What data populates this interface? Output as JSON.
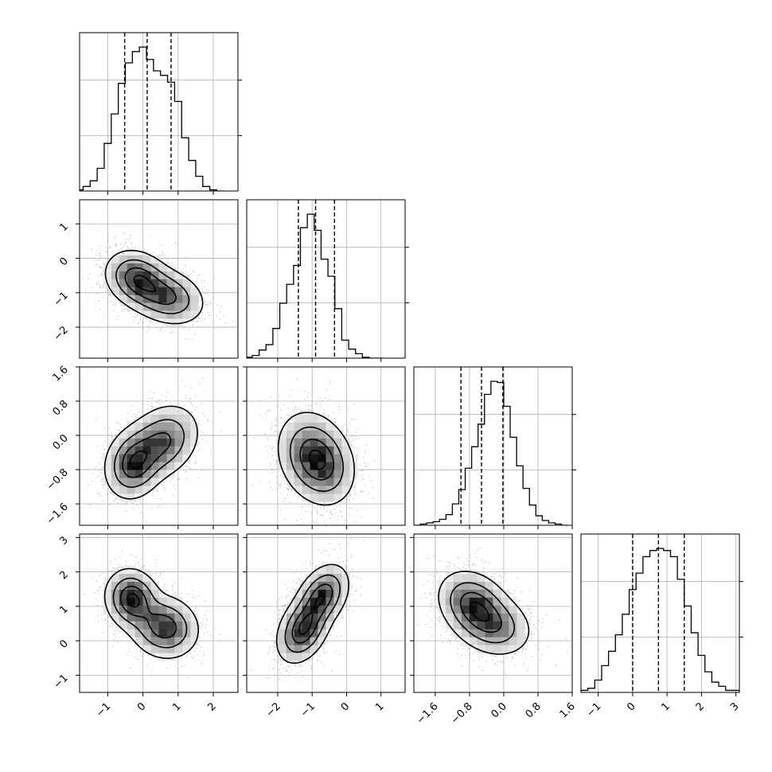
{
  "chart_data": {
    "type": "corner",
    "grid": true,
    "dimensions": [
      {
        "index": 0,
        "range": [
          -1.8,
          2.7
        ],
        "ticks": [
          -1,
          0,
          1,
          2
        ],
        "tick_labels": [
          "−1",
          "0",
          "1",
          "2"
        ],
        "quantiles": [
          -0.52,
          0.12,
          0.8
        ]
      },
      {
        "index": 1,
        "range": [
          -2.9,
          1.7
        ],
        "ticks": [
          -2,
          -1,
          0,
          1
        ],
        "tick_labels": [
          "−2",
          "−1",
          "0",
          "1"
        ],
        "quantiles": [
          -1.4,
          -0.9,
          -0.35
        ]
      },
      {
        "index": 2,
        "range": [
          -2.1,
          1.6
        ],
        "ticks": [
          -1.6,
          -0.8,
          0.0,
          0.8,
          1.6
        ],
        "tick_labels": [
          "−1.6",
          "−0.8",
          "0.0",
          "0.8",
          "1.6"
        ],
        "quantiles": [
          -1.0,
          -0.52,
          -0.02
        ]
      },
      {
        "index": 3,
        "range": [
          -1.5,
          3.1
        ],
        "ticks": [
          -1,
          0,
          1,
          2,
          3
        ],
        "tick_labels": [
          "−1",
          "0",
          "1",
          "2",
          "3"
        ],
        "quantiles": [
          0.0,
          0.75,
          1.5
        ]
      }
    ],
    "histograms": [
      {
        "dim": 0,
        "bin_edges": [
          -1.9,
          -1.7,
          -1.5,
          -1.3,
          -1.1,
          -0.9,
          -0.7,
          -0.5,
          -0.3,
          -0.1,
          0.1,
          0.3,
          0.5,
          0.7,
          0.9,
          1.1,
          1.3,
          1.5,
          1.7,
          1.9,
          2.1,
          2.3
        ],
        "counts": [
          1,
          4,
          9,
          20,
          42,
          68,
          95,
          113,
          123,
          127,
          116,
          106,
          102,
          96,
          79,
          47,
          27,
          13,
          4,
          1,
          0
        ]
      },
      {
        "dim": 1,
        "bin_edges": [
          -2.94,
          -2.74,
          -2.54,
          -2.34,
          -2.14,
          -1.94,
          -1.74,
          -1.54,
          -1.34,
          -1.14,
          -0.94,
          -0.74,
          -0.54,
          -0.34,
          -0.14,
          0.06,
          0.26,
          0.46,
          0.66,
          0.86,
          1.06
        ],
        "counts": [
          1,
          3,
          9,
          15,
          33,
          61,
          82,
          103,
          145,
          160,
          142,
          110,
          91,
          55,
          20,
          10,
          5,
          1,
          0,
          0
        ]
      },
      {
        "dim": 2,
        "bin_edges": [
          -2.1,
          -1.95,
          -1.8,
          -1.65,
          -1.5,
          -1.35,
          -1.2,
          -1.05,
          -0.9,
          -0.75,
          -0.6,
          -0.45,
          -0.3,
          -0.15,
          0.0,
          0.15,
          0.3,
          0.45,
          0.6,
          0.75,
          0.9,
          1.05,
          1.2,
          1.35,
          1.5
        ],
        "counts": [
          0,
          1,
          2,
          3,
          5,
          9,
          18,
          30,
          48,
          66,
          85,
          110,
          121,
          120,
          100,
          74,
          50,
          31,
          17,
          8,
          4,
          2,
          1,
          0
        ]
      },
      {
        "dim": 3,
        "bin_edges": [
          -1.5,
          -1.3,
          -1.1,
          -0.9,
          -0.7,
          -0.5,
          -0.3,
          -0.1,
          0.1,
          0.3,
          0.5,
          0.7,
          0.9,
          1.1,
          1.3,
          1.5,
          1.7,
          1.9,
          2.1,
          2.3,
          2.5,
          2.7,
          2.9,
          3.1
        ],
        "counts": [
          1,
          2,
          6,
          13,
          20,
          28,
          38,
          50,
          58,
          66,
          69,
          70,
          69,
          66,
          55,
          42,
          29,
          18,
          10,
          5,
          3,
          1,
          1
        ]
      }
    ],
    "pairs": [
      {
        "x_dim": 0,
        "y_dim": 1,
        "modes": [
          {
            "mx": -0.15,
            "my": -0.6,
            "sx": 0.42,
            "sy": 0.38,
            "rho": -0.2,
            "w": 1.0
          },
          {
            "mx": 0.65,
            "my": -1.1,
            "sx": 0.5,
            "sy": 0.38,
            "rho": -0.25,
            "w": 0.85
          }
        ]
      },
      {
        "x_dim": 0,
        "y_dim": 2,
        "modes": [
          {
            "mx": -0.25,
            "my": -0.65,
            "sx": 0.38,
            "sy": 0.38,
            "rho": 0.15,
            "w": 1.0
          },
          {
            "mx": 0.55,
            "my": -0.15,
            "sx": 0.48,
            "sy": 0.4,
            "rho": 0.25,
            "w": 0.8
          }
        ]
      },
      {
        "x_dim": 1,
        "y_dim": 2,
        "modes": [
          {
            "mx": -0.95,
            "my": -0.5,
            "sx": 0.48,
            "sy": 0.48,
            "rho": -0.2,
            "w": 1.0
          },
          {
            "mx": -0.6,
            "my": -0.75,
            "sx": 0.42,
            "sy": 0.42,
            "rho": -0.15,
            "w": 0.35
          }
        ]
      },
      {
        "x_dim": 0,
        "y_dim": 3,
        "modes": [
          {
            "mx": -0.3,
            "my": 1.2,
            "sx": 0.35,
            "sy": 0.4,
            "rho": -0.1,
            "w": 1.0
          },
          {
            "mx": 0.6,
            "my": 0.4,
            "sx": 0.45,
            "sy": 0.42,
            "rho": -0.1,
            "w": 0.85
          }
        ]
      },
      {
        "x_dim": 1,
        "y_dim": 3,
        "modes": [
          {
            "mx": -1.25,
            "my": 0.35,
            "sx": 0.35,
            "sy": 0.45,
            "rho": 0.35,
            "w": 1.0
          },
          {
            "mx": -0.7,
            "my": 1.3,
            "sx": 0.35,
            "sy": 0.42,
            "rho": 0.35,
            "w": 0.9
          }
        ]
      },
      {
        "x_dim": 2,
        "y_dim": 3,
        "modes": [
          {
            "mx": -0.7,
            "my": 1.05,
            "sx": 0.38,
            "sy": 0.45,
            "rho": -0.25,
            "w": 1.0
          },
          {
            "mx": -0.25,
            "my": 0.45,
            "sx": 0.42,
            "sy": 0.42,
            "rho": -0.2,
            "w": 0.7
          }
        ]
      }
    ],
    "contour_levels_fraction_of_peak": [
      0.08,
      0.3,
      0.62,
      0.9
    ],
    "scatter_points_per_panel": 2600,
    "colors": {
      "line": "#000000",
      "scatter": "#a8a8a8",
      "density_low": "#ffffff",
      "density_high": "#000000",
      "grid": "#b0b0b0"
    }
  }
}
